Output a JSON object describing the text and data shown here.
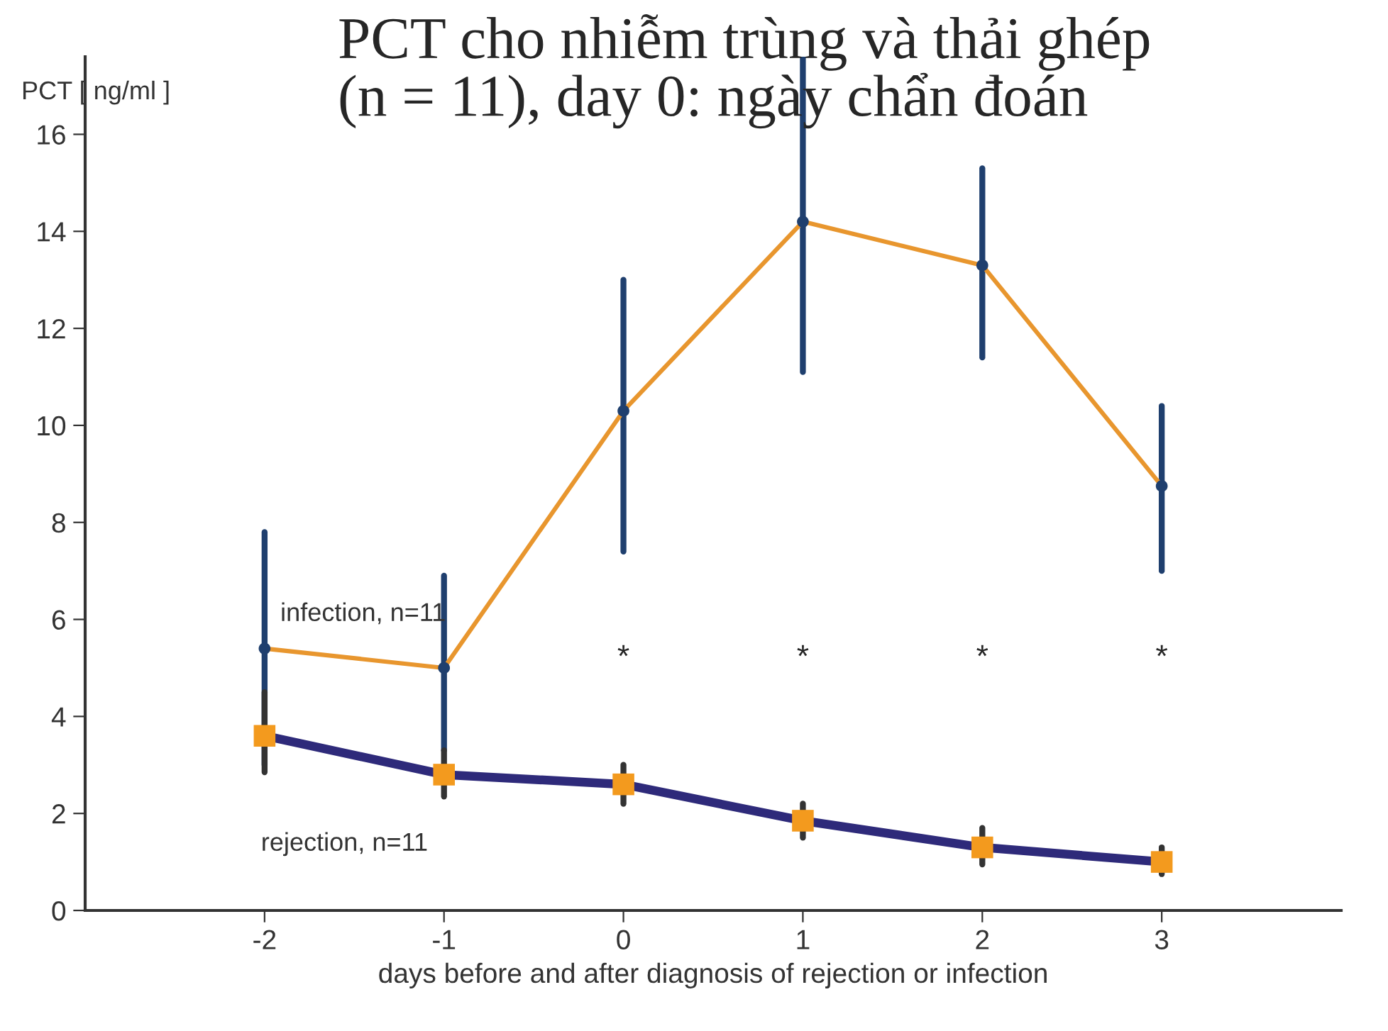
{
  "chart_data": {
    "type": "line",
    "title": "PCT cho nhiễm trùng và thải ghép\n(n = 11), day 0: ngày chẩn đoán",
    "ylabel": "PCT [ ng/ml ]",
    "xlabel": "days before and after diagnosis of rejection or infection",
    "x": [
      -2,
      -1,
      0,
      1,
      2,
      3
    ],
    "series": [
      {
        "name": "infection, n=11",
        "color": "#e8962e",
        "colors": [
          "#1f3f6e",
          "#1f3f6e",
          "#1f3f6e",
          "#1f3f6e",
          "#1f3f6e",
          "#1f3f6e"
        ],
        "marker": "circle",
        "values": [
          5.4,
          5.0,
          10.3,
          14.2,
          13.3,
          8.75
        ],
        "errors": [
          [
            3.0,
            7.8
          ],
          [
            3.3,
            6.9
          ],
          [
            7.4,
            13.0
          ],
          [
            11.1,
            17.6
          ],
          [
            11.4,
            15.3
          ],
          [
            7.0,
            10.4
          ]
        ]
      },
      {
        "name": "rejection, n=11",
        "color": "#2e2a7a",
        "colors": [
          "#f39a1e",
          "#f39a1e",
          "#f39a1e",
          "#f39a1e",
          "#f39a1e",
          "#f39a1e"
        ],
        "marker": "square",
        "values": [
          3.6,
          2.8,
          2.6,
          1.85,
          1.3,
          1.0
        ],
        "errors": [
          [
            2.85,
            4.5
          ],
          [
            2.35,
            3.3
          ],
          [
            2.2,
            3.0
          ],
          [
            1.5,
            2.2
          ],
          [
            0.95,
            1.7
          ],
          [
            0.75,
            1.3
          ]
        ]
      }
    ],
    "annotations": [
      "*",
      "*",
      "*",
      "*"
    ],
    "xlim": [
      -3,
      4
    ],
    "ylim": [
      0,
      17.6
    ],
    "xticks": [
      -2,
      -1,
      0,
      1,
      2,
      3
    ],
    "yticks": [
      0,
      2,
      4,
      6,
      8,
      10,
      12,
      14,
      16
    ],
    "grid": false,
    "legend": false
  }
}
